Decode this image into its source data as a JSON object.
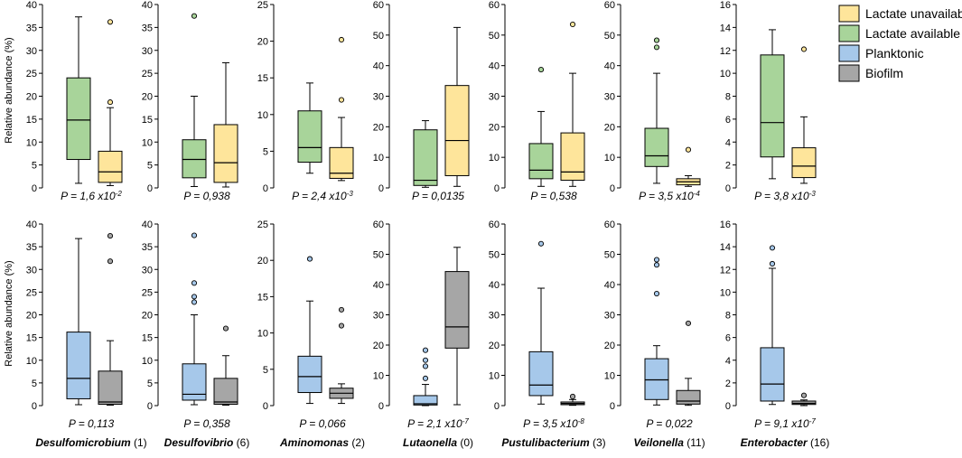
{
  "legend": [
    {
      "label": "Lactate unavailable",
      "color": "#FEE59B"
    },
    {
      "label": "Lactate available",
      "color": "#A8D49A"
    },
    {
      "label": "Planktonic",
      "color": "#A6C8EA"
    },
    {
      "label": "Biofilm",
      "color": "#A6A6A6"
    }
  ],
  "ylabel": "Relative abundance (%)",
  "p_prefix": "P = ",
  "chart_data": [
    {
      "type": "box",
      "row": "lactate",
      "genus": "Desulfomicrobium",
      "count": "(1)",
      "ymax": 40,
      "ticks": [
        0,
        5,
        10,
        15,
        20,
        25,
        30,
        35,
        40
      ],
      "p_main": "1,6 x10",
      "p_exp": "-2",
      "boxes": [
        {
          "group": "Lactate available",
          "color": "#A8D49A",
          "min": 1,
          "q1": 6.2,
          "median": 14.8,
          "q3": 24,
          "max": 37.3,
          "outliers": []
        },
        {
          "group": "Lactate unavailable",
          "color": "#FEE59B",
          "min": 0.5,
          "q1": 1.2,
          "median": 3.5,
          "q3": 8,
          "max": 17.5,
          "outliers": [
            18.7,
            36.2
          ]
        }
      ]
    },
    {
      "type": "box",
      "row": "lactate",
      "genus": "Desulfovibrio",
      "count": "(6)",
      "ymax": 40,
      "ticks": [
        0,
        5,
        10,
        15,
        20,
        25,
        30,
        35,
        40
      ],
      "p_main": "0,938",
      "p_exp": "",
      "boxes": [
        {
          "group": "Lactate available",
          "color": "#A8D49A",
          "min": 0.3,
          "q1": 2.2,
          "median": 6.2,
          "q3": 10.5,
          "max": 20,
          "outliers": [
            37.5
          ]
        },
        {
          "group": "Lactate unavailable",
          "color": "#FEE59B",
          "min": 0.2,
          "q1": 1.2,
          "median": 5.5,
          "q3": 13.8,
          "max": 27.3,
          "outliers": []
        }
      ]
    },
    {
      "type": "box",
      "row": "lactate",
      "genus": "Aminomonas",
      "count": "(2)",
      "ymax": 25,
      "ticks": [
        0,
        5,
        10,
        15,
        20,
        25
      ],
      "p_main": "2,4 x10",
      "p_exp": "-3",
      "boxes": [
        {
          "group": "Lactate available",
          "color": "#A8D49A",
          "min": 2,
          "q1": 3.5,
          "median": 5.5,
          "q3": 10.5,
          "max": 14.3,
          "outliers": []
        },
        {
          "group": "Lactate unavailable",
          "color": "#FEE59B",
          "min": 1,
          "q1": 1.3,
          "median": 2,
          "q3": 5.5,
          "max": 9.6,
          "outliers": [
            12,
            20.2
          ]
        }
      ]
    },
    {
      "type": "box",
      "row": "lactate",
      "genus": "Lutaonella",
      "count": "(0)",
      "ymax": 60,
      "ticks": [
        0,
        10,
        20,
        30,
        40,
        50,
        60
      ],
      "p_main": "0,0135",
      "p_exp": "",
      "boxes": [
        {
          "group": "Lactate available",
          "color": "#A8D49A",
          "min": 0.2,
          "q1": 0.8,
          "median": 2.5,
          "q3": 19,
          "max": 22,
          "outliers": []
        },
        {
          "group": "Lactate unavailable",
          "color": "#FEE59B",
          "min": 0.5,
          "q1": 4,
          "median": 15.5,
          "q3": 33.5,
          "max": 52.5,
          "outliers": []
        }
      ]
    },
    {
      "type": "box",
      "row": "lactate",
      "genus": "Pustulibacterium",
      "count": "(3)",
      "ymax": 60,
      "ticks": [
        0,
        10,
        20,
        30,
        40,
        50,
        60
      ],
      "p_main": "0,538",
      "p_exp": "",
      "boxes": [
        {
          "group": "Lactate available",
          "color": "#A8D49A",
          "min": 0.5,
          "q1": 3,
          "median": 5.8,
          "q3": 14.5,
          "max": 25,
          "outliers": [
            38.7
          ]
        },
        {
          "group": "Lactate unavailable",
          "color": "#FEE59B",
          "min": 0.5,
          "q1": 2.5,
          "median": 5.2,
          "q3": 18,
          "max": 37.5,
          "outliers": [
            53.5
          ]
        }
      ]
    },
    {
      "type": "box",
      "row": "lactate",
      "genus": "Veilonella",
      "count": "(11)",
      "ymax": 60,
      "ticks": [
        0,
        10,
        20,
        30,
        40,
        50,
        60
      ],
      "p_main": "3,5 x10",
      "p_exp": "-4",
      "boxes": [
        {
          "group": "Lactate available",
          "color": "#A8D49A",
          "min": 1.5,
          "q1": 7,
          "median": 10.5,
          "q3": 19.5,
          "max": 37.5,
          "outliers": [
            46,
            48.3
          ]
        },
        {
          "group": "Lactate unavailable",
          "color": "#FEE59B",
          "min": 0.5,
          "q1": 1,
          "median": 2,
          "q3": 3,
          "max": 4,
          "outliers": [
            12.5
          ]
        }
      ]
    },
    {
      "type": "box",
      "row": "lactate",
      "genus": "Enterobacter",
      "count": "(16)",
      "ymax": 16,
      "ticks": [
        0,
        2,
        4,
        6,
        8,
        10,
        12,
        14,
        16
      ],
      "p_main": "3,8 x10",
      "p_exp": "-3",
      "boxes": [
        {
          "group": "Lactate available",
          "color": "#A8D49A",
          "min": 0.8,
          "q1": 2.7,
          "median": 5.7,
          "q3": 11.6,
          "max": 13.8,
          "outliers": []
        },
        {
          "group": "Lactate unavailable",
          "color": "#FEE59B",
          "min": 0.4,
          "q1": 0.9,
          "median": 1.9,
          "q3": 3.5,
          "max": 6.2,
          "outliers": [
            12.1
          ]
        }
      ]
    },
    {
      "type": "box",
      "row": "growth",
      "genus": "Desulfomicrobium",
      "count": "(1)",
      "ymax": 40,
      "ticks": [
        0,
        5,
        10,
        15,
        20,
        25,
        30,
        35,
        40
      ],
      "p_main": "0,113",
      "p_exp": "",
      "boxes": [
        {
          "group": "Planktonic",
          "color": "#A6C8EA",
          "min": 0.2,
          "q1": 1.5,
          "median": 6,
          "q3": 16.2,
          "max": 36.8,
          "outliers": []
        },
        {
          "group": "Biofilm",
          "color": "#A6A6A6",
          "min": 0.1,
          "q1": 0.3,
          "median": 0.8,
          "q3": 7.6,
          "max": 14.3,
          "outliers": [
            31.8,
            37.4
          ]
        }
      ]
    },
    {
      "type": "box",
      "row": "growth",
      "genus": "Desulfovibrio",
      "count": "(6)",
      "ymax": 40,
      "ticks": [
        0,
        5,
        10,
        15,
        20,
        25,
        30,
        35,
        40
      ],
      "p_main": "0,358",
      "p_exp": "",
      "boxes": [
        {
          "group": "Planktonic",
          "color": "#A6C8EA",
          "min": 0.2,
          "q1": 1.2,
          "median": 2.5,
          "q3": 9.2,
          "max": 20,
          "outliers": [
            22.8,
            24,
            27,
            37.5
          ]
        },
        {
          "group": "Biofilm",
          "color": "#A6A6A6",
          "min": 0.1,
          "q1": 0.3,
          "median": 0.8,
          "q3": 6,
          "max": 11,
          "outliers": [
            17
          ]
        }
      ]
    },
    {
      "type": "box",
      "row": "growth",
      "genus": "Aminomonas",
      "count": "(2)",
      "ymax": 25,
      "ticks": [
        0,
        5,
        10,
        15,
        20,
        25
      ],
      "p_main": "0,066",
      "p_exp": "",
      "boxes": [
        {
          "group": "Planktonic",
          "color": "#A6C8EA",
          "min": 0.3,
          "q1": 1.8,
          "median": 4,
          "q3": 6.8,
          "max": 14.4,
          "outliers": [
            20.2
          ]
        },
        {
          "group": "Biofilm",
          "color": "#A6A6A6",
          "min": 0.3,
          "q1": 1,
          "median": 1.7,
          "q3": 2.4,
          "max": 3,
          "outliers": [
            11,
            13.2
          ]
        }
      ]
    },
    {
      "type": "box",
      "row": "growth",
      "genus": "Lutaonella",
      "count": "(0)",
      "ymax": 60,
      "ticks": [
        0,
        10,
        20,
        30,
        40,
        50,
        60
      ],
      "p_main": "2,1 x10",
      "p_exp": "-7",
      "boxes": [
        {
          "group": "Planktonic",
          "color": "#A6C8EA",
          "min": 0,
          "q1": 0.2,
          "median": 0.6,
          "q3": 3.3,
          "max": 7,
          "outliers": [
            9,
            13,
            15,
            18.3
          ]
        },
        {
          "group": "Biofilm",
          "color": "#A6A6A6",
          "min": 0.3,
          "q1": 19,
          "median": 26,
          "q3": 44.3,
          "max": 52.3,
          "outliers": []
        }
      ]
    },
    {
      "type": "box",
      "row": "growth",
      "genus": "Pustulibacterium",
      "count": "(3)",
      "ymax": 60,
      "ticks": [
        0,
        10,
        20,
        30,
        40,
        50,
        60
      ],
      "p_main": "3,5 x10",
      "p_exp": "-8",
      "boxes": [
        {
          "group": "Planktonic",
          "color": "#A6C8EA",
          "min": 0.5,
          "q1": 3.3,
          "median": 6.8,
          "q3": 17.8,
          "max": 38.8,
          "outliers": [
            53.5
          ]
        },
        {
          "group": "Biofilm",
          "color": "#A6A6A6",
          "min": 0.1,
          "q1": 0.3,
          "median": 0.7,
          "q3": 1.2,
          "max": 2,
          "outliers": [
            3
          ]
        }
      ]
    },
    {
      "type": "box",
      "row": "growth",
      "genus": "Veilonella",
      "count": "(11)",
      "ymax": 60,
      "ticks": [
        0,
        10,
        20,
        30,
        40,
        50,
        60
      ],
      "p_main": "0,022",
      "p_exp": "",
      "boxes": [
        {
          "group": "Planktonic",
          "color": "#A6C8EA",
          "min": 0.2,
          "q1": 2,
          "median": 8.5,
          "q3": 15.5,
          "max": 19.8,
          "outliers": [
            37,
            46.5,
            48.2
          ]
        },
        {
          "group": "Biofilm",
          "color": "#A6A6A6",
          "min": 0.1,
          "q1": 0.5,
          "median": 1.5,
          "q3": 5,
          "max": 9,
          "outliers": [
            27.2
          ]
        }
      ]
    },
    {
      "type": "box",
      "row": "growth",
      "genus": "Enterobacter",
      "count": "(16)",
      "ymax": 16,
      "ticks": [
        0,
        2,
        4,
        6,
        8,
        10,
        12,
        14,
        16
      ],
      "p_main": "9,1 x10",
      "p_exp": "-7",
      "boxes": [
        {
          "group": "Planktonic",
          "color": "#A6C8EA",
          "min": 0.1,
          "q1": 0.4,
          "median": 1.9,
          "q3": 5.1,
          "max": 12.1,
          "outliers": [
            12.5,
            13.9
          ]
        },
        {
          "group": "Biofilm",
          "color": "#A6A6A6",
          "min": 0,
          "q1": 0.1,
          "median": 0.2,
          "q3": 0.4,
          "max": 0.5,
          "outliers": [
            0.9
          ]
        }
      ]
    }
  ]
}
